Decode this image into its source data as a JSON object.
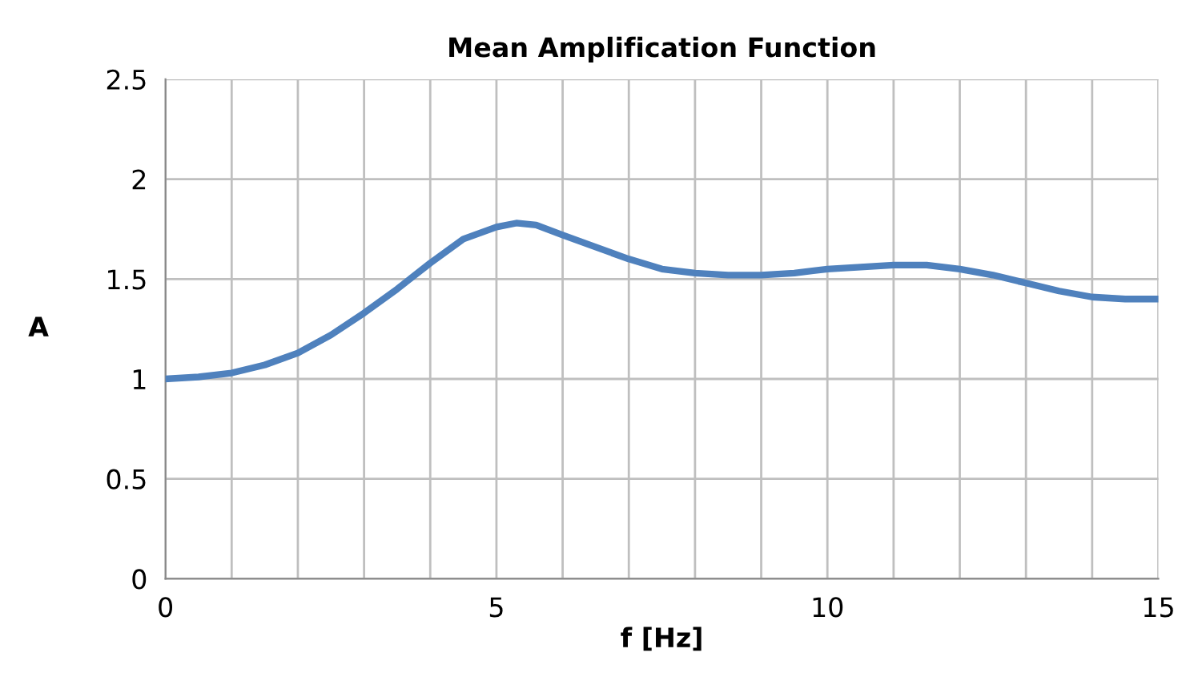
{
  "chart_data": {
    "type": "line",
    "title": "Mean Amplification Function",
    "xlabel": "f [Hz]",
    "ylabel": "A",
    "x": [
      0,
      0.5,
      1,
      1.5,
      2,
      2.5,
      3,
      3.5,
      4,
      4.5,
      5,
      5.3,
      5.6,
      6,
      6.5,
      7,
      7.5,
      8,
      8.5,
      9,
      9.5,
      10,
      10.5,
      11,
      11.5,
      12,
      12.5,
      13,
      13.5,
      14,
      14.5,
      15
    ],
    "series": [
      {
        "color": "#4f81bd",
        "values": [
          1.0,
          1.01,
          1.03,
          1.07,
          1.13,
          1.22,
          1.33,
          1.45,
          1.58,
          1.7,
          1.76,
          1.78,
          1.77,
          1.72,
          1.66,
          1.6,
          1.55,
          1.53,
          1.52,
          1.52,
          1.53,
          1.55,
          1.56,
          1.57,
          1.57,
          1.55,
          1.52,
          1.48,
          1.44,
          1.41,
          1.4,
          1.4
        ]
      }
    ],
    "xlim": [
      0,
      15
    ],
    "ylim": [
      0,
      2.5
    ],
    "xticks": [
      0,
      {
        "value": 1,
        "label": null
      },
      {
        "value": 2,
        "label": null
      },
      {
        "value": 3,
        "label": null
      },
      {
        "value": 4,
        "label": null
      },
      5,
      {
        "value": 6,
        "label": null
      },
      {
        "value": 7,
        "label": null
      },
      {
        "value": 8,
        "label": null
      },
      {
        "value": 9,
        "label": null
      },
      10,
      {
        "value": 11,
        "label": null
      },
      {
        "value": 12,
        "label": null
      },
      {
        "value": 13,
        "label": null
      },
      {
        "value": 14,
        "label": null
      },
      15
    ],
    "yticks": [
      0,
      0.5,
      1,
      1.5,
      2,
      2.5
    ],
    "grid": true,
    "marker": "none",
    "line_style": "solid",
    "legend": false
  }
}
